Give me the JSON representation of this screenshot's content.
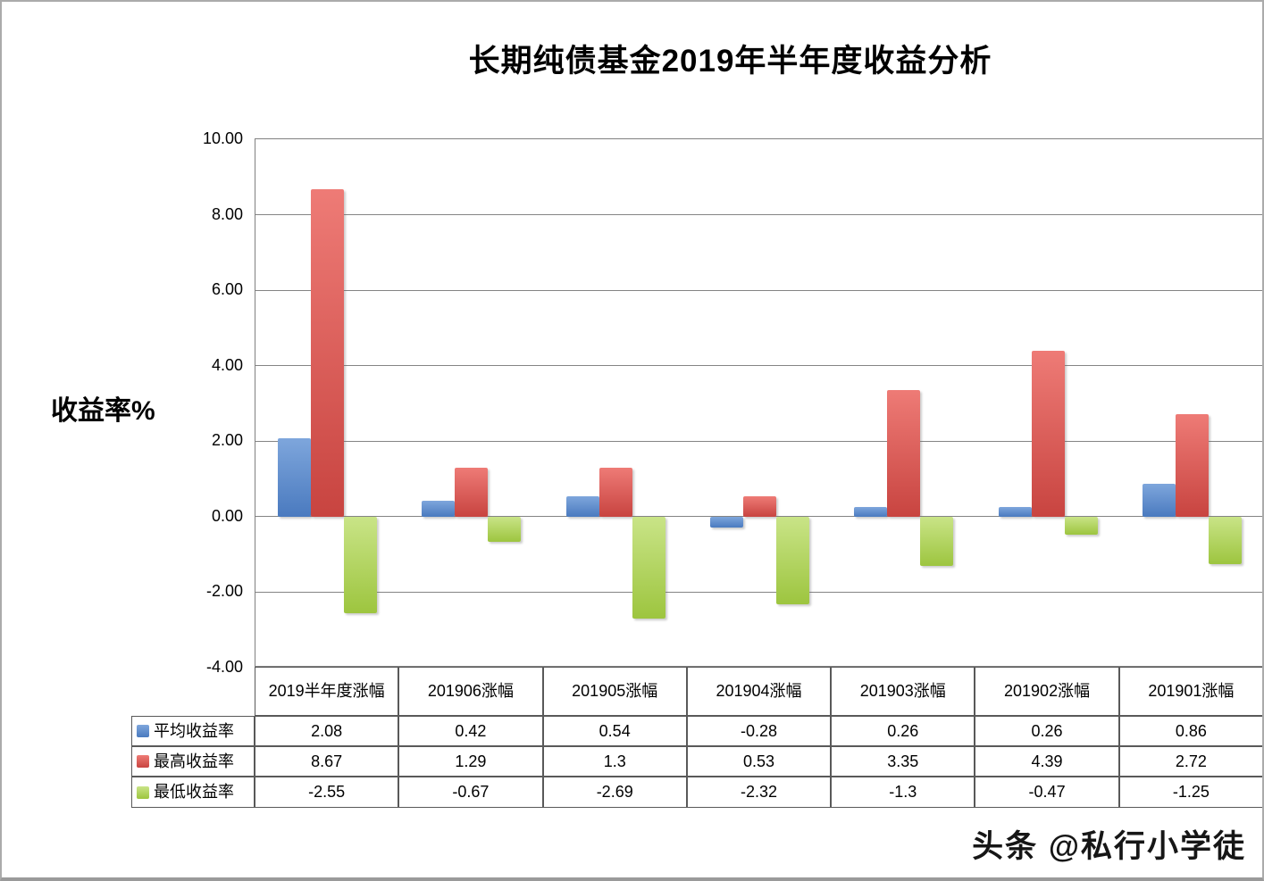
{
  "title": "长期纯债基金2019年半年度收益分析",
  "y_axis_title": "收益率%",
  "watermark": "头条 @私行小学徒",
  "colors": {
    "avg_blue": "#4a7abf",
    "avg_blue_light": "#7ea6dc",
    "max_red": "#c84440",
    "max_red_light": "#ee7b76",
    "min_green": "#9dc53f",
    "min_green_light": "#c9e487",
    "gridline": "#848484",
    "table_border": "#595959"
  },
  "chart_data": {
    "type": "bar",
    "title": "长期纯债基金2019年半年度收益分析",
    "categories": [
      "2019半年度涨幅",
      "201906涨幅",
      "201905涨幅",
      "201904涨幅",
      "201903涨幅",
      "201902涨幅",
      "201901涨幅"
    ],
    "series": [
      {
        "name": "平均收益率",
        "color": "#4a7abf",
        "color_light": "#7ea6dc",
        "values": [
          2.08,
          0.42,
          0.54,
          -0.28,
          0.26,
          0.26,
          0.86
        ]
      },
      {
        "name": "最高收益率",
        "color": "#c84440",
        "color_light": "#ee7b76",
        "values": [
          8.67,
          1.29,
          1.3,
          0.53,
          3.35,
          4.39,
          2.72
        ]
      },
      {
        "name": "最低收益率",
        "color": "#9dc53f",
        "color_light": "#c9e487",
        "values": [
          -2.55,
          -0.67,
          -2.69,
          -2.32,
          -1.3,
          -0.47,
          -1.25
        ]
      }
    ],
    "xlabel": "",
    "ylabel": "收益率%",
    "ylim": [
      -4,
      10
    ],
    "ytick_step": 2,
    "yticks": [
      "10.00",
      "8.00",
      "6.00",
      "4.00",
      "2.00",
      "0.00",
      "-2.00",
      "-4.00"
    ],
    "grid": "horizontal-major",
    "legend_position": "table-row-labels"
  },
  "table": {
    "headers": [
      "2019半年度涨幅",
      "201906涨幅",
      "201905涨幅",
      "201904涨幅",
      "201903涨幅",
      "201902涨幅",
      "201901涨幅"
    ],
    "rows": [
      {
        "label": "平均收益率",
        "values": [
          "2.08",
          "0.42",
          "0.54",
          "-0.28",
          "0.26",
          "0.26",
          "0.86"
        ]
      },
      {
        "label": "最高收益率",
        "values": [
          "8.67",
          "1.29",
          "1.3",
          "0.53",
          "3.35",
          "4.39",
          "2.72"
        ]
      },
      {
        "label": "最低收益率",
        "values": [
          "-2.55",
          "-0.67",
          "-2.69",
          "-2.32",
          "-1.3",
          "-0.47",
          "-1.25"
        ]
      }
    ]
  }
}
